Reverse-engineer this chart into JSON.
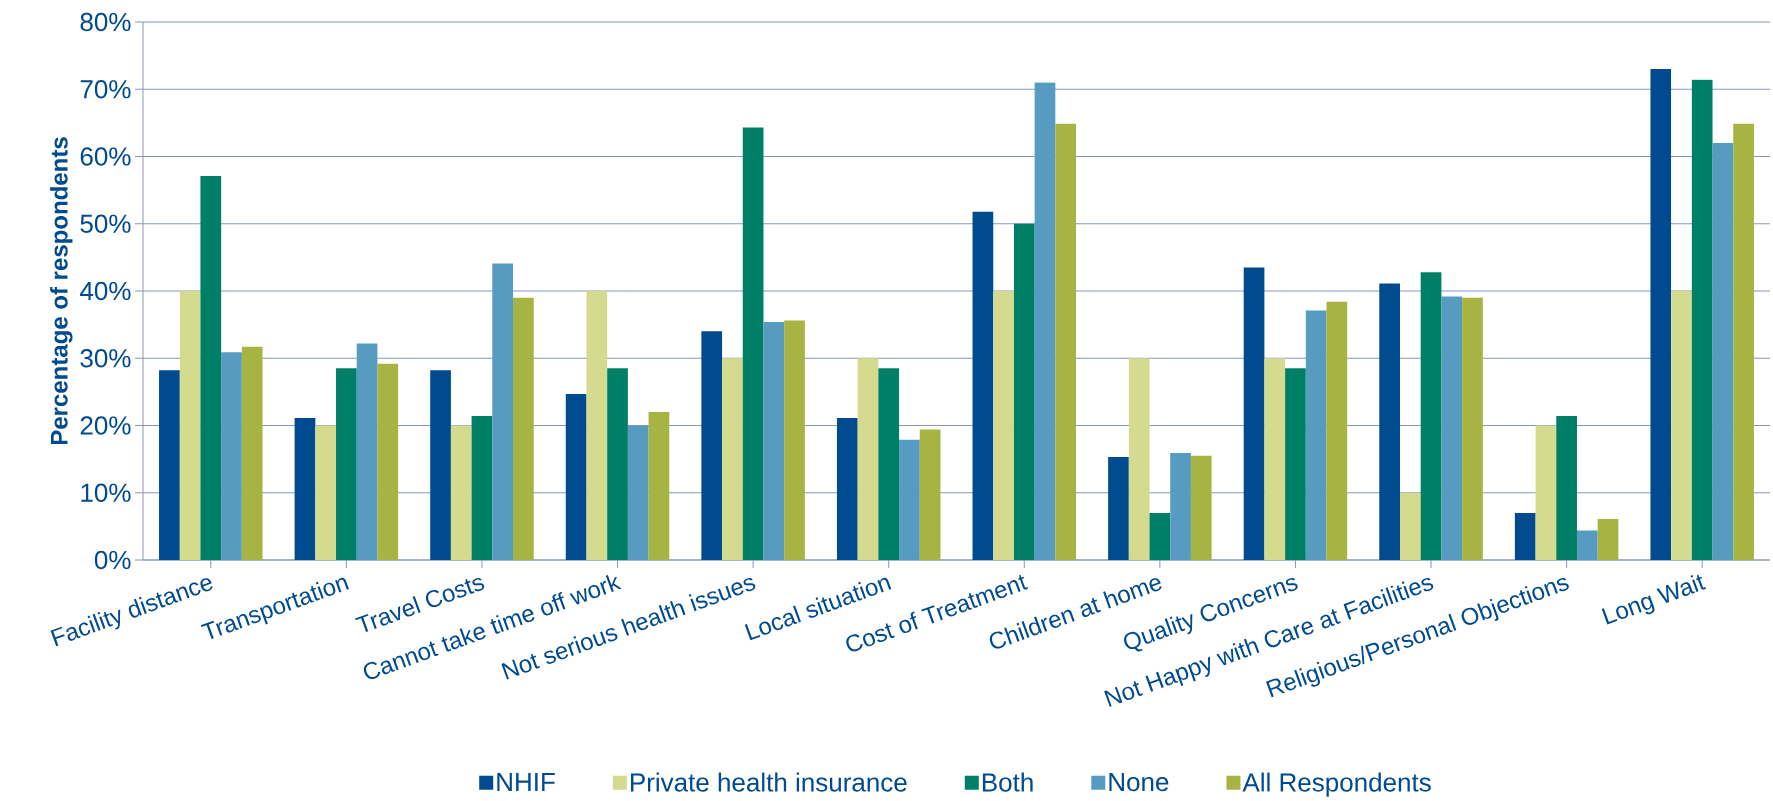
{
  "chart_data": {
    "type": "bar",
    "ylabel": "**Percentage of respondents**",
    "categories": [
      "Facility distance",
      "Transportation",
      "Travel Costs",
      "Cannot take time off work",
      "Not serious health issues",
      "Local situation",
      "Cost of Treatment",
      "Children at home",
      "Quality Concerns",
      "Not Happy with Care at Facilities",
      "Religious/Personal Objections",
      "Long Wait"
    ],
    "series": [
      {
        "name": "NHIF",
        "color": "#004a8f",
        "values": [
          28.2,
          21.1,
          28.2,
          24.7,
          34.0,
          21.1,
          51.8,
          15.3,
          43.5,
          41.1,
          7.0,
          73.0
        ]
      },
      {
        "name": "Private health insurance",
        "color": "#d4db8f",
        "values": [
          40,
          20,
          20,
          40,
          30,
          30,
          40,
          30,
          30,
          10,
          20,
          40
        ]
      },
      {
        "name": "Both",
        "color": "#007f67",
        "values": [
          57.1,
          28.5,
          21.4,
          28.5,
          64.3,
          28.5,
          50,
          7.0,
          28.5,
          42.8,
          21.4,
          71.4
        ]
      },
      {
        "name": "None",
        "color": "#589bc0",
        "values": [
          30.9,
          32.2,
          44.1,
          20,
          35.4,
          17.9,
          71.0,
          15.9,
          37.1,
          39.2,
          4.4,
          62.0
        ]
      },
      {
        "name": "All Respondents",
        "color": "#a7b342",
        "values": [
          31.7,
          29.2,
          39.0,
          22.0,
          35.6,
          19.4,
          64.9,
          15.5,
          38.4,
          39.0,
          6.1,
          64.9
        ]
      }
    ],
    "ylim": [
      0,
      80
    ],
    "yticks": [
      {
        "value": 0,
        "label": "0%"
      },
      {
        "value": 10,
        "label": "10%"
      },
      {
        "value": 20,
        "label": "20%"
      },
      {
        "value": 30,
        "label": "30%"
      },
      {
        "value": 40,
        "label": "40%"
      },
      {
        "value": 50,
        "label": "50%"
      },
      {
        "value": 60,
        "label": "60%"
      },
      {
        "value": 70,
        "label": "70%"
      },
      {
        "value": 80,
        "label": "80%"
      }
    ],
    "grid": "y",
    "legend": "bottom"
  }
}
